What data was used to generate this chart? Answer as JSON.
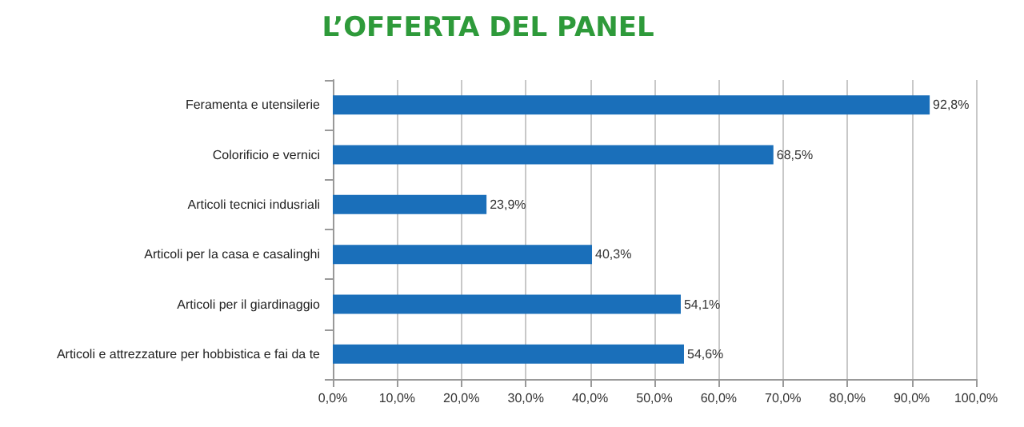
{
  "chart_data": {
    "type": "bar",
    "orientation": "horizontal",
    "title": "L’OFFERTA DEL PANEL",
    "categories": [
      "Feramenta e utensilerie",
      "Colorificio e vernici",
      "Articoli tecnici indusriali",
      "Articoli per la casa e casalinghi",
      "Articoli per il giardinaggio",
      "Articoli e attrezzature per hobbistica e fai da te"
    ],
    "values": [
      92.8,
      68.5,
      23.9,
      40.3,
      54.1,
      54.6
    ],
    "value_labels": [
      "92,8%",
      "68,5%",
      "23,9%",
      "40,3%",
      "54,1%",
      "54,6%"
    ],
    "color": "#1a6fba",
    "xlim": [
      0,
      100
    ],
    "xticks": [
      {
        "value": 0,
        "label": "0,0%"
      },
      {
        "value": 10,
        "label": "10,0%"
      },
      {
        "value": 20,
        "label": "20,0%"
      },
      {
        "value": 30,
        "label": "30,0%"
      },
      {
        "value": 40,
        "label": "40,0%"
      },
      {
        "value": 50,
        "label": "50,0%"
      },
      {
        "value": 60,
        "label": "60,0%"
      },
      {
        "value": 70,
        "label": "70,0%"
      },
      {
        "value": 80,
        "label": "80,0%"
      },
      {
        "value": 90,
        "label": "90,0%"
      },
      {
        "value": 100,
        "label": "100,0%"
      }
    ],
    "grid": "x"
  }
}
